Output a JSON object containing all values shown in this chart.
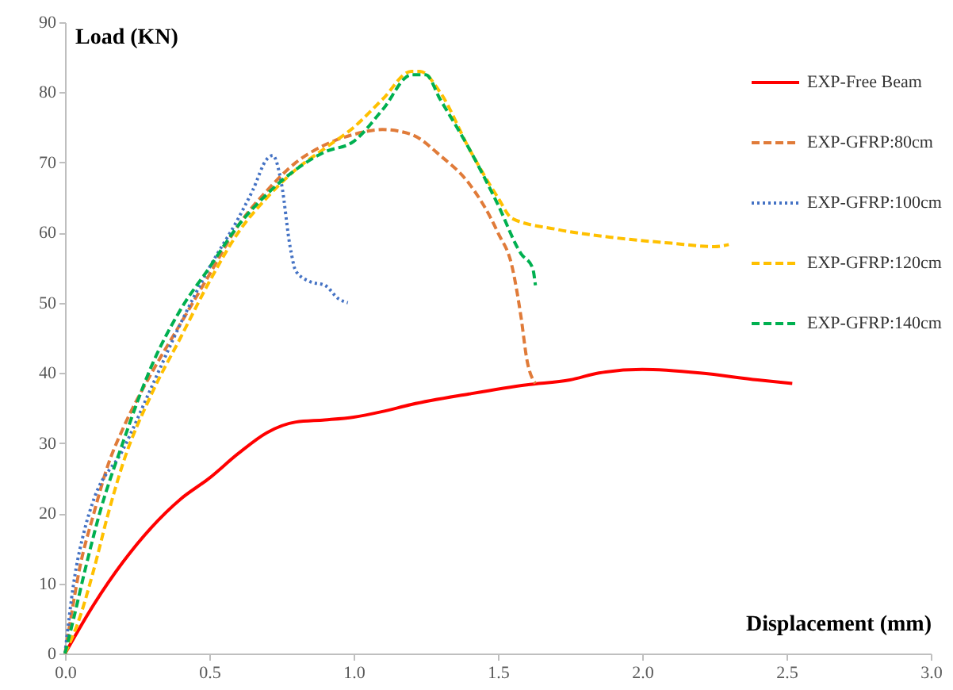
{
  "chart_data": {
    "type": "line",
    "xlabel": "Displacement (mm)",
    "ylabel": "Load (KN)",
    "xlim": [
      0,
      3
    ],
    "ylim": [
      0,
      90
    ],
    "xticks": [
      {
        "value": 0,
        "label": "0.0"
      },
      {
        "value": 0.5,
        "label": "0.5"
      },
      {
        "value": 1,
        "label": "1.0"
      },
      {
        "value": 1.5,
        "label": "1.5"
      },
      {
        "value": 2,
        "label": "2.0"
      },
      {
        "value": 2.5,
        "label": "2.5"
      },
      {
        "value": 3,
        "label": "3.0"
      }
    ],
    "yticks": [
      0,
      10,
      20,
      30,
      40,
      50,
      60,
      70,
      80,
      90
    ],
    "grid": false,
    "legend": "top right",
    "marker": "none",
    "series": [
      {
        "name": "EXP-Free Beam",
        "color": "#ff0000",
        "line_style": "solid",
        "x": [
          0,
          0.1,
          0.2,
          0.3,
          0.4,
          0.5,
          0.6,
          0.7,
          0.8,
          0.9,
          1.0,
          1.1,
          1.2,
          1.4,
          1.6,
          1.75,
          1.85,
          2.0,
          2.2,
          2.4,
          2.52
        ],
        "values": [
          0,
          7,
          13,
          18,
          22,
          25,
          28.5,
          31.5,
          33,
          33.3,
          33.7,
          34.5,
          35.5,
          37,
          38.3,
          39,
          40,
          40.5,
          40,
          39,
          38.5
        ]
      },
      {
        "name": "EXP-GFRP:80cm",
        "color": "#e07b39",
        "line_style": "dashed",
        "x": [
          0,
          0.02,
          0.05,
          0.1,
          0.15,
          0.2,
          0.3,
          0.4,
          0.5,
          0.6,
          0.7,
          0.8,
          0.9,
          1.0,
          1.1,
          1.2,
          1.3,
          1.4,
          1.5,
          1.55,
          1.58,
          1.6,
          1.63
        ],
        "values": [
          0,
          5,
          12,
          20,
          27,
          32,
          40,
          47,
          54,
          61,
          66,
          70,
          72.5,
          74,
          74.7,
          74,
          71,
          67,
          60,
          55,
          48,
          42,
          38.5
        ]
      },
      {
        "name": "EXP-GFRP:100cm",
        "color": "#4472c4",
        "line_style": "dotted",
        "x": [
          0,
          0.03,
          0.07,
          0.1,
          0.2,
          0.3,
          0.4,
          0.5,
          0.6,
          0.65,
          0.7,
          0.72,
          0.75,
          0.78,
          0.8,
          0.85,
          0.9,
          0.95,
          0.98
        ],
        "values": [
          0,
          10,
          18,
          22,
          29,
          38,
          47,
          55,
          62,
          66,
          70.5,
          71,
          67,
          58,
          54.5,
          53,
          52.5,
          50.5,
          50
        ]
      },
      {
        "name": "EXP-GFRP:120cm",
        "color": "#ffc000",
        "line_style": "dashed",
        "x": [
          0,
          0.05,
          0.1,
          0.15,
          0.2,
          0.3,
          0.4,
          0.5,
          0.6,
          0.7,
          0.8,
          0.9,
          1.0,
          1.1,
          1.2,
          1.23,
          1.3,
          1.4,
          1.5,
          1.55,
          1.7,
          1.9,
          2.1,
          2.25,
          2.3
        ],
        "values": [
          0,
          5,
          12,
          20,
          27,
          37,
          45,
          53,
          60,
          65,
          69,
          72,
          75,
          79,
          83,
          83,
          80,
          72,
          65,
          62,
          60.5,
          59.3,
          58.5,
          58,
          58.3
        ]
      },
      {
        "name": "EXP-GFRP:140cm",
        "color": "#00b050",
        "line_style": "dashed",
        "x": [
          0,
          0.03,
          0.07,
          0.12,
          0.2,
          0.3,
          0.4,
          0.5,
          0.6,
          0.7,
          0.8,
          0.9,
          1.0,
          1.1,
          1.2,
          1.25,
          1.3,
          1.4,
          1.5,
          1.58,
          1.62,
          1.63
        ],
        "values": [
          0,
          5,
          12,
          20,
          30,
          41,
          49,
          55,
          61,
          65.5,
          69,
          71.5,
          73,
          77.5,
          82.5,
          82.5,
          79,
          72,
          64,
          57,
          55,
          52.5
        ]
      }
    ]
  }
}
